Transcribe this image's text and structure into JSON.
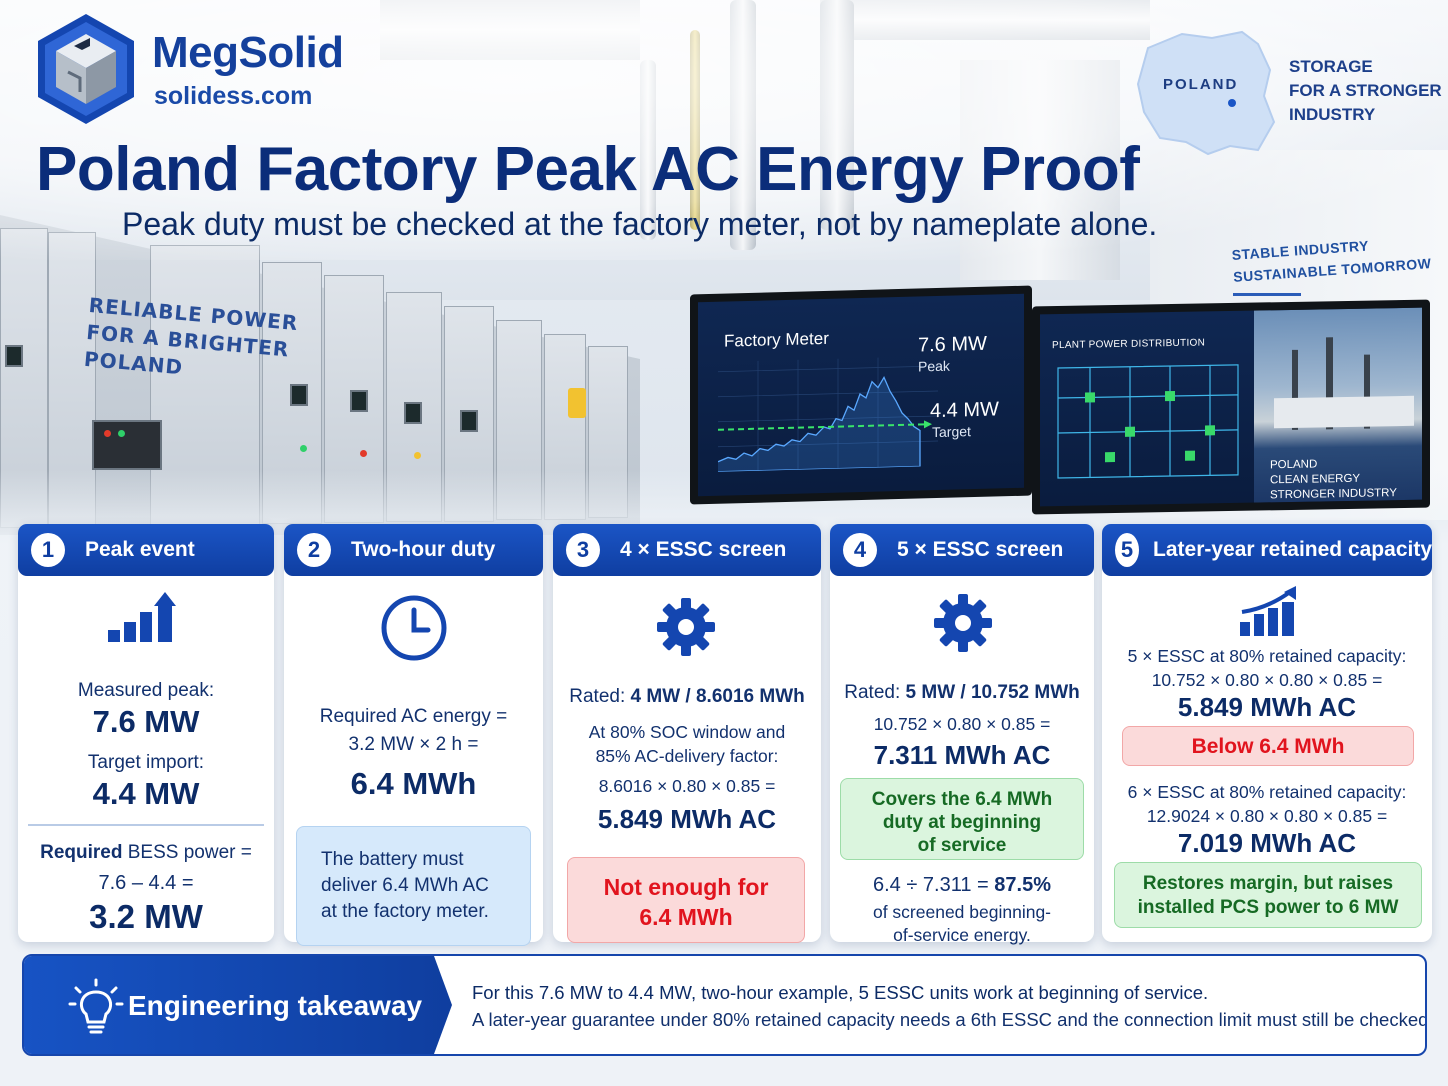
{
  "brand": {
    "name": "MegSolid",
    "domain": "solidess.com"
  },
  "header": {
    "title": "Poland Factory Peak AC Energy Proof",
    "subtitle": "Peak duty must be checked at the factory meter, not by nameplate alone."
  },
  "map": {
    "label": "POLAND",
    "tagline": [
      "STORAGE",
      "FOR A STRONGER",
      "INDUSTRY"
    ]
  },
  "scene": {
    "wall_text": [
      "RELIABLE POWER",
      "FOR A BRIGHTER",
      "POLAND"
    ],
    "banner": [
      "STABLE INDUSTRY",
      "SUSTAINABLE TOMORROW"
    ],
    "monitor1": {
      "title": "Factory Meter",
      "peak_value": "7.6 MW",
      "peak_label": "Peak",
      "target_value": "4.4 MW",
      "target_label": "Target"
    },
    "monitor2": {
      "title": "PLANT POWER DISTRIBUTION",
      "caption": [
        "POLAND",
        "CLEAN ENERGY",
        "STRONGER INDUSTRY"
      ]
    }
  },
  "cards": [
    {
      "num": "1",
      "title": "Peak event",
      "icon": "bar-chart-up-icon",
      "measured_label": "Measured peak:",
      "measured_value": "7.6 MW",
      "target_label": "Target import:",
      "target_value": "4.4 MW",
      "required_label_bold": "Required",
      "required_label_rest": " BESS power =",
      "calc": "7.6 – 4.4 =",
      "result": "3.2 MW"
    },
    {
      "num": "2",
      "title": "Two-hour duty",
      "icon": "clock-icon",
      "line1": "Required AC energy =",
      "line2": "3.2 MW × 2 h =",
      "result": "6.4 MWh",
      "note": [
        "The battery must",
        "deliver 6.4 MWh AC",
        "at the factory meter."
      ]
    },
    {
      "num": "3",
      "title": "4 × ESSC screen",
      "icon": "gear-icon",
      "rated_label": "Rated:",
      "rated_value": "4 MW / 8.6016 MWh",
      "line1": "At 80% SOC window and",
      "line2": "85% AC-delivery factor:",
      "calc": "8.6016 × 0.80 × 0.85 =",
      "result": "5.849 MWh AC",
      "verdict": [
        "Not enough for",
        "6.4 MWh"
      ]
    },
    {
      "num": "4",
      "title": "5 × ESSC screen",
      "icon": "gear-icon",
      "rated_label": "Rated:",
      "rated_value": "5 MW / 10.752 MWh",
      "calc": "10.752 × 0.80 × 0.85 =",
      "result": "7.311 MWh AC",
      "verdict": [
        "Covers the 6.4 MWh",
        "duty at beginning",
        "of service"
      ],
      "ratio_calc": "6.4 ÷ 7.311 =",
      "ratio_value": "87.5%",
      "ratio_note": [
        "of screened  beginning-",
        "of-service energy."
      ]
    },
    {
      "num": "5",
      "title": "Later-year retained capacity",
      "icon": "growth-chart-icon",
      "a_label": "5 × ESSC at 80% retained capacity:",
      "a_calc": "10.752 × 0.80 × 0.80 × 0.85 =",
      "a_result": "5.849 MWh AC",
      "a_verdict": "Below 6.4 MWh",
      "b_label": "6 × ESSC at 80% retained capacity:",
      "b_calc": "12.9024 × 0.80 × 0.80 × 0.85 =",
      "b_result": "7.019 MWh AC",
      "b_verdict": [
        "Restores margin, but raises",
        "installed PCS power to 6 MW"
      ]
    }
  ],
  "takeaway": {
    "label": "Engineering takeaway",
    "icon": "lightbulb-icon",
    "line1": "For this 7.6 MW to 4.4 MW, two-hour example, 5 ESSC units work at beginning of service.",
    "line2": "A later-year guarantee under 80% retained capacity needs a 6th ESSC and the connection limit must still be checked."
  },
  "colors": {
    "primary": "#0f3ea1",
    "heading": "#0b2d7a",
    "danger": "#e1141e",
    "success": "#166a24"
  }
}
